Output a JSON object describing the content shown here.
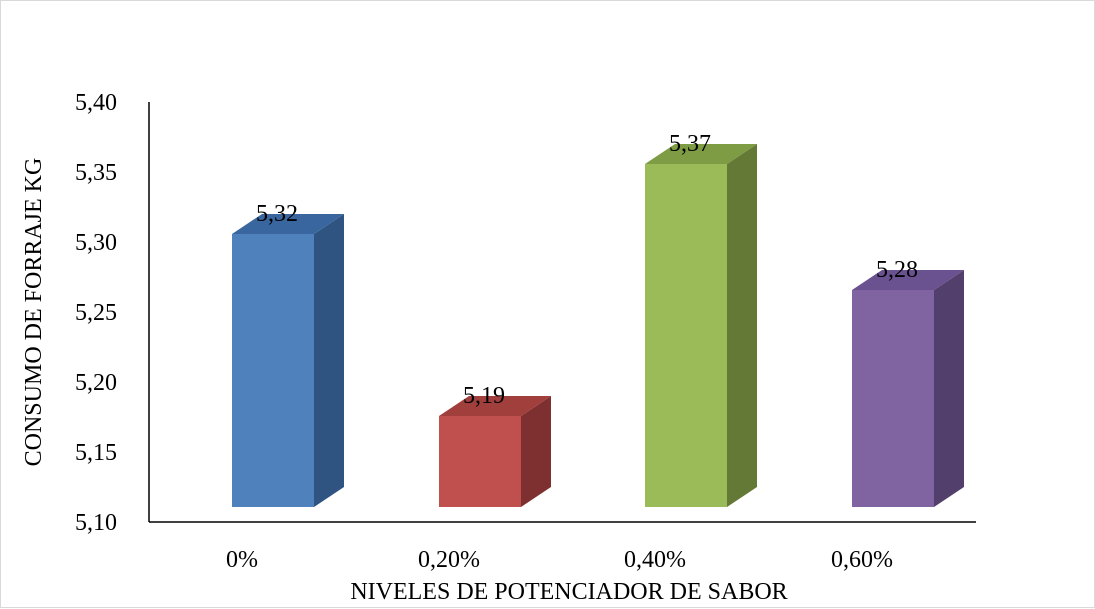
{
  "chart_data": {
    "type": "bar",
    "style": "3d",
    "title": "",
    "xlabel": "NIVELES DE POTENCIADOR DE SABOR",
    "ylabel": "CONSUMO DE FORRAJE KG",
    "ylim": [
      5.1,
      5.4
    ],
    "yticks": [
      "5,10",
      "5,15",
      "5,20",
      "5,25",
      "5,30",
      "5,35",
      "5,40"
    ],
    "categories": [
      "0%",
      "0,20%",
      "0,40%",
      "0,60%"
    ],
    "values": [
      5.32,
      5.19,
      5.37,
      5.28
    ],
    "data_labels": [
      "5,32",
      "5,19",
      "5,37",
      "5,28"
    ],
    "colors": [
      {
        "front": "#4F81BD",
        "side": "#2F5481",
        "top": "#3A66A0"
      },
      {
        "front": "#C0504D",
        "side": "#7D302F",
        "top": "#A03F3C"
      },
      {
        "front": "#9BBB59",
        "side": "#637935",
        "top": "#7E9C44"
      },
      {
        "front": "#8064A2",
        "side": "#533F6B",
        "top": "#6A5290"
      }
    ],
    "grid": false,
    "legend": "none"
  }
}
